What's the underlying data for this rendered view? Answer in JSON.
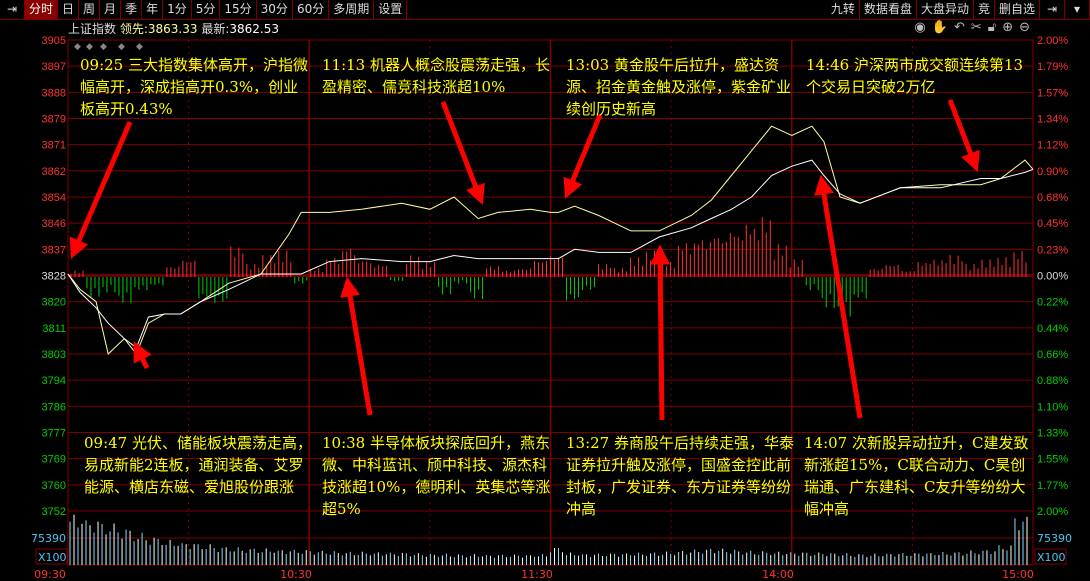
{
  "toolbar": {
    "tabs": [
      "分时",
      "日",
      "周",
      "月",
      "季",
      "年",
      "1分",
      "5分",
      "15分",
      "30分",
      "60分",
      "多周期",
      "设置"
    ],
    "right_tabs": [
      "九转",
      "数据看盘",
      "大盘异动",
      "竞",
      "删自选"
    ],
    "icons": [
      "exit-icon",
      "eye-icon",
      "hand-icon",
      "undo-icon",
      "scissors-icon",
      "lock-icon",
      "zoom-in-icon",
      "zoom-out-icon"
    ]
  },
  "info": {
    "name": "上证指数",
    "lead_label": "领先:",
    "lead_value": "3863.33",
    "last_label": "最新:",
    "last_value": "3862.53"
  },
  "annotations": [
    "09:25 三大指数集体高开，沪指微幅高开，深成指高开0.3%，创业板高开0.43%",
    "11:13 机器人概念股震荡走强，长盈精密、儒竞科技涨超10%",
    "13:03 黄金股午后拉升，盛达资源、招金黄金触及涨停，紫金矿业续创历史新高",
    "14:46 沪深两市成交额连续第13个交易日突破2万亿",
    "09:47 光伏、储能板块震荡走高，易成新能2连板，通润装备、艾罗能源、横店东磁、爱旭股份跟涨",
    "10:38 半导体板块探底回升，燕东微、中科蓝讯、颀中科技、源杰科技涨超10%，德明利、英集芯等涨超5%",
    "13:27 券商股午后持续走强，华泰证券拉升触及涨停，国盛金控此前封板，广发证券、东方证券等纷纷冲高",
    "14:07 次新股异动拉升，C建发致新涨超15%，C联合动力、C昊创瑞通、广东建科、C友升等纷纷大幅冲高"
  ],
  "chart_data": {
    "type": "line",
    "prev_close": 3828,
    "ylim": [
      3752,
      3905
    ],
    "y_ticks": [
      "3905",
      "3897",
      "3888",
      "3879",
      "3871",
      "3862",
      "3854",
      "3846",
      "3837",
      "3828",
      "3820",
      "3811",
      "3803",
      "3794",
      "3786",
      "3777",
      "3769",
      "3760",
      "3752"
    ],
    "pct_ticks": [
      "2.00%",
      "1.79%",
      "1.57%",
      "1.34%",
      "1.12%",
      "0.90%",
      "0.68%",
      "0.45%",
      "0.23%",
      "0.00%",
      "0.22%",
      "0.44%",
      "0.66%",
      "0.88%",
      "1.10%",
      "1.33%",
      "1.55%",
      "1.77%",
      "2.00%"
    ],
    "x_ticks": [
      "09:30",
      "10:30",
      "11:30",
      "14:00",
      "15:00"
    ],
    "volume_tick": "75390",
    "volume_unit": "X100",
    "colors": {
      "up": "#ff3232",
      "down": "#00d000",
      "lead_line": "#ffffa0",
      "last_line": "#ffffff",
      "grid": "#800000",
      "note": "#ffff00",
      "arrow": "#ff0000"
    },
    "series": [
      {
        "name": "领先",
        "time": [
          "09:30",
          "09:33",
          "09:37",
          "09:40",
          "09:44",
          "09:47",
          "09:50",
          "09:54",
          "09:58",
          "10:03",
          "10:10",
          "10:18",
          "10:25",
          "10:28",
          "10:35",
          "10:43",
          "10:53",
          "11:00",
          "11:06",
          "11:12",
          "11:17",
          "11:25",
          "11:30",
          "13:02",
          "13:06",
          "13:12",
          "13:20",
          "13:27",
          "13:35",
          "13:40",
          "13:45",
          "13:50",
          "13:55",
          "14:00",
          "14:05",
          "14:08",
          "14:12",
          "14:17",
          "14:27",
          "14:37",
          "14:47",
          "14:52",
          "14:58",
          "15:00"
        ],
        "values": [
          3829,
          3824,
          3820,
          3803,
          3808,
          3803,
          3813,
          3816,
          3816,
          3820,
          3826,
          3829,
          3842,
          3849,
          3849,
          3850,
          3852,
          3850,
          3854,
          3847,
          3849,
          3850,
          3849,
          3849,
          3851,
          3848,
          3843,
          3843,
          3848,
          3853,
          3861,
          3869,
          3877,
          3874,
          3877,
          3872,
          3854,
          3852,
          3857,
          3858,
          3858,
          3860,
          3866,
          3863
        ]
      },
      {
        "name": "最新",
        "time": [
          "09:30",
          "09:33",
          "09:37",
          "09:40",
          "09:44",
          "09:47",
          "09:50",
          "09:54",
          "09:58",
          "10:03",
          "10:10",
          "10:18",
          "10:25",
          "10:28",
          "10:35",
          "10:43",
          "10:53",
          "11:00",
          "11:06",
          "11:12",
          "11:17",
          "11:25",
          "11:30",
          "13:02",
          "13:06",
          "13:12",
          "13:20",
          "13:27",
          "13:35",
          "13:40",
          "13:45",
          "13:50",
          "13:55",
          "14:00",
          "14:05",
          "14:08",
          "14:12",
          "14:17",
          "14:27",
          "14:37",
          "14:47",
          "14:52",
          "14:58",
          "15:00"
        ],
        "values": [
          3829,
          3823,
          3818,
          3813,
          3808,
          3805,
          3815,
          3816,
          3816,
          3820,
          3824,
          3829,
          3829,
          3829,
          3833,
          3834,
          3833,
          3833,
          3835,
          3834,
          3834,
          3834,
          3834,
          3834,
          3837,
          3836,
          3836,
          3841,
          3844,
          3847,
          3850,
          3854,
          3861,
          3864,
          3866,
          3861,
          3855,
          3852,
          3857,
          3857,
          3860,
          3860,
          3862,
          3863
        ]
      }
    ],
    "strength": [
      3,
      -9,
      -7,
      -12,
      -6,
      -4,
      5,
      8,
      -10,
      -12,
      14,
      6,
      10,
      12,
      -3,
      4,
      9,
      14,
      8,
      6,
      -2,
      10,
      7,
      -8,
      -3,
      -10,
      5,
      3,
      4,
      8,
      10,
      -11,
      -6,
      6,
      4,
      9,
      12,
      7,
      16,
      18,
      20,
      22,
      25,
      28,
      15,
      8,
      -6,
      -14,
      -18,
      -10,
      4,
      6,
      3,
      7,
      8,
      10,
      6,
      8,
      9,
      12
    ],
    "volume": [
      98,
      88,
      80,
      72,
      62,
      55,
      48,
      44,
      40,
      36,
      34,
      33,
      32,
      30,
      29,
      28,
      27,
      26,
      26,
      25,
      24,
      23,
      22,
      22,
      21,
      21,
      20,
      20,
      20,
      21,
      35,
      24,
      22,
      22,
      23,
      24,
      25,
      26,
      28,
      30,
      32,
      30,
      28,
      27,
      26,
      25,
      24,
      24,
      23,
      22,
      22,
      23,
      23,
      24,
      25,
      26,
      28,
      30,
      38,
      95
    ]
  }
}
